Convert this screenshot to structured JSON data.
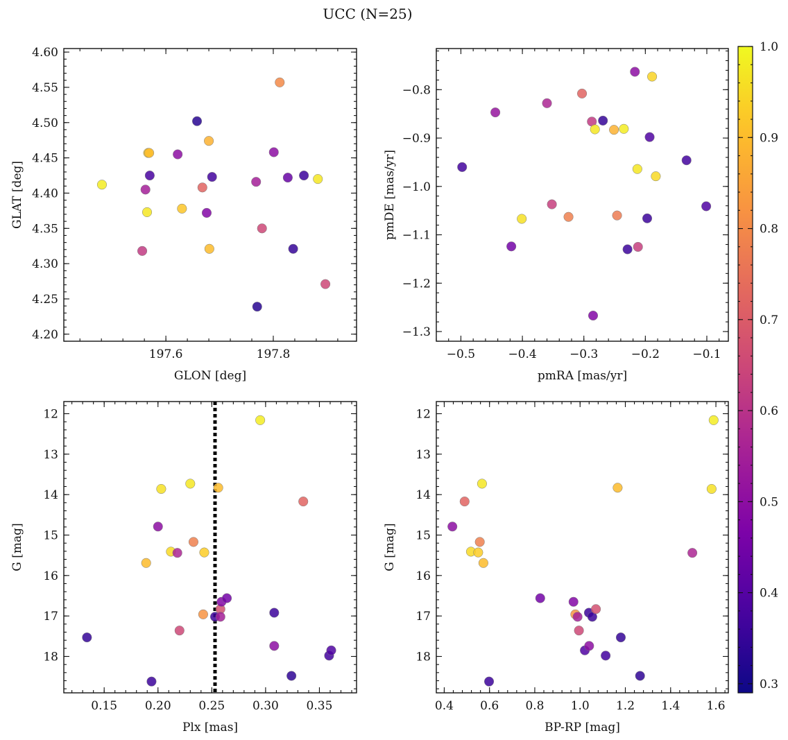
{
  "title": "UCC (N=25)",
  "colorbar": {
    "range": [
      0.29,
      1.0
    ],
    "ticks": [
      0.3,
      0.4,
      0.5,
      0.6,
      0.7,
      0.8,
      0.9,
      1.0
    ],
    "tick_labels": [
      "0.3",
      "0.4",
      "0.5",
      "0.6",
      "0.7",
      "0.8",
      "0.9",
      "1.0"
    ],
    "colormap": "plasma"
  },
  "chart_data": [
    {
      "type": "scatter",
      "xlabel": "GLON [deg]",
      "ylabel": "GLAT [deg]",
      "xlim": [
        197.41,
        197.955
      ],
      "ylim": [
        4.19,
        4.605
      ],
      "x_ticks": [
        197.6,
        197.8
      ],
      "x_tick_labels": [
        "197.6",
        "197.8"
      ],
      "y_ticks": [
        4.2,
        4.25,
        4.3,
        4.35,
        4.4,
        4.45,
        4.5,
        4.55,
        4.6
      ],
      "y_tick_labels": [
        "4.20",
        "4.25",
        "4.30",
        "4.35",
        "4.40",
        "4.45",
        "4.50",
        "4.55",
        "4.60"
      ],
      "y_inverted": false,
      "points": [
        {
          "x": 197.481,
          "y": 4.412,
          "c": 0.98
        },
        {
          "x": 197.556,
          "y": 4.318,
          "c": 0.62
        },
        {
          "x": 197.562,
          "y": 4.405,
          "c": 0.55
        },
        {
          "x": 197.565,
          "y": 4.373,
          "c": 0.97
        },
        {
          "x": 197.567,
          "y": 4.457,
          "c": 0.93
        },
        {
          "x": 197.569,
          "y": 4.457,
          "c": 0.9
        },
        {
          "x": 197.57,
          "y": 4.425,
          "c": 0.38
        },
        {
          "x": 197.622,
          "y": 4.455,
          "c": 0.5
        },
        {
          "x": 197.63,
          "y": 4.378,
          "c": 0.92
        },
        {
          "x": 197.658,
          "y": 4.502,
          "c": 0.33
        },
        {
          "x": 197.668,
          "y": 4.408,
          "c": 0.72
        },
        {
          "x": 197.676,
          "y": 4.372,
          "c": 0.48
        },
        {
          "x": 197.68,
          "y": 4.474,
          "c": 0.88
        },
        {
          "x": 197.681,
          "y": 4.321,
          "c": 0.9
        },
        {
          "x": 197.686,
          "y": 4.423,
          "c": 0.37
        },
        {
          "x": 197.768,
          "y": 4.416,
          "c": 0.55
        },
        {
          "x": 197.77,
          "y": 4.239,
          "c": 0.33
        },
        {
          "x": 197.779,
          "y": 4.35,
          "c": 0.65
        },
        {
          "x": 197.801,
          "y": 4.458,
          "c": 0.5
        },
        {
          "x": 197.812,
          "y": 4.557,
          "c": 0.8
        },
        {
          "x": 197.827,
          "y": 4.422,
          "c": 0.43
        },
        {
          "x": 197.837,
          "y": 4.321,
          "c": 0.35
        },
        {
          "x": 197.857,
          "y": 4.425,
          "c": 0.36
        },
        {
          "x": 197.883,
          "y": 4.42,
          "c": 0.97
        },
        {
          "x": 197.897,
          "y": 4.271,
          "c": 0.65
        }
      ]
    },
    {
      "type": "scatter",
      "xlabel": "pmRA [mas/yr]",
      "ylabel": "pmDE [mas/yr]",
      "xlim": [
        -0.54,
        -0.065
      ],
      "ylim": [
        -1.32,
        -0.715
      ],
      "x_ticks": [
        -0.5,
        -0.4,
        -0.3,
        -0.2,
        -0.1
      ],
      "x_tick_labels": [
        "−0.5",
        "−0.4",
        "−0.3",
        "−0.2",
        "−0.1"
      ],
      "y_ticks": [
        -1.3,
        -1.2,
        -1.1,
        -1.0,
        -0.9,
        -0.8
      ],
      "y_tick_labels": [
        "−1.3",
        "−1.2",
        "−1.1",
        "−1.0",
        "−0.9",
        "−0.8"
      ],
      "y_inverted": false,
      "points": [
        {
          "x": -0.498,
          "y": -0.96,
          "c": 0.37
        },
        {
          "x": -0.444,
          "y": -0.847,
          "c": 0.52
        },
        {
          "x": -0.418,
          "y": -1.124,
          "c": 0.45
        },
        {
          "x": -0.401,
          "y": -1.067,
          "c": 0.96
        },
        {
          "x": -0.36,
          "y": -0.828,
          "c": 0.57
        },
        {
          "x": -0.352,
          "y": -1.037,
          "c": 0.63
        },
        {
          "x": -0.325,
          "y": -1.063,
          "c": 0.78
        },
        {
          "x": -0.303,
          "y": -0.808,
          "c": 0.72
        },
        {
          "x": -0.287,
          "y": -0.866,
          "c": 0.62
        },
        {
          "x": -0.285,
          "y": -1.267,
          "c": 0.48
        },
        {
          "x": -0.282,
          "y": -0.882,
          "c": 0.97
        },
        {
          "x": -0.269,
          "y": -0.864,
          "c": 0.35
        },
        {
          "x": -0.251,
          "y": -0.883,
          "c": 0.88
        },
        {
          "x": -0.246,
          "y": -1.06,
          "c": 0.77
        },
        {
          "x": -0.235,
          "y": -0.881,
          "c": 0.98
        },
        {
          "x": -0.229,
          "y": -1.13,
          "c": 0.36
        },
        {
          "x": -0.217,
          "y": -0.763,
          "c": 0.5
        },
        {
          "x": -0.213,
          "y": -0.964,
          "c": 0.97
        },
        {
          "x": -0.212,
          "y": -1.125,
          "c": 0.63
        },
        {
          "x": -0.197,
          "y": -1.066,
          "c": 0.36
        },
        {
          "x": -0.193,
          "y": -0.898,
          "c": 0.39
        },
        {
          "x": -0.189,
          "y": -0.773,
          "c": 0.94
        },
        {
          "x": -0.183,
          "y": -0.979,
          "c": 0.95
        },
        {
          "x": -0.133,
          "y": -0.946,
          "c": 0.37
        },
        {
          "x": -0.101,
          "y": -1.041,
          "c": 0.39
        }
      ]
    },
    {
      "type": "scatter",
      "xlabel": "Plx [mas]",
      "ylabel": "G [mag]",
      "xlim": [
        0.1125,
        0.3845
      ],
      "ylim": [
        11.7,
        18.9
      ],
      "x_ticks": [
        0.15,
        0.2,
        0.25,
        0.3,
        0.35
      ],
      "x_tick_labels": [
        "0.15",
        "0.20",
        "0.25",
        "0.30",
        "0.35"
      ],
      "y_ticks": [
        12,
        13,
        14,
        15,
        16,
        17,
        18
      ],
      "y_tick_labels": [
        "12",
        "13",
        "14",
        "15",
        "16",
        "17",
        "18"
      ],
      "y_inverted": true,
      "vline": 0.253,
      "points": [
        {
          "x": 0.134,
          "y": 17.53,
          "c": 0.35
        },
        {
          "x": 0.189,
          "y": 15.69,
          "c": 0.9
        },
        {
          "x": 0.194,
          "y": 18.62,
          "c": 0.36
        },
        {
          "x": 0.2,
          "y": 14.79,
          "c": 0.5
        },
        {
          "x": 0.203,
          "y": 13.86,
          "c": 0.96
        },
        {
          "x": 0.212,
          "y": 15.41,
          "c": 0.95
        },
        {
          "x": 0.218,
          "y": 15.44,
          "c": 0.57
        },
        {
          "x": 0.22,
          "y": 17.36,
          "c": 0.65
        },
        {
          "x": 0.23,
          "y": 13.73,
          "c": 0.97
        },
        {
          "x": 0.233,
          "y": 15.17,
          "c": 0.78
        },
        {
          "x": 0.242,
          "y": 16.96,
          "c": 0.82
        },
        {
          "x": 0.243,
          "y": 15.43,
          "c": 0.93
        },
        {
          "x": 0.253,
          "y": 17.02,
          "c": 0.36
        },
        {
          "x": 0.256,
          "y": 13.83,
          "c": 0.9
        },
        {
          "x": 0.258,
          "y": 16.83,
          "c": 0.67
        },
        {
          "x": 0.258,
          "y": 17.02,
          "c": 0.55
        },
        {
          "x": 0.259,
          "y": 16.65,
          "c": 0.48
        },
        {
          "x": 0.264,
          "y": 16.56,
          "c": 0.45
        },
        {
          "x": 0.295,
          "y": 12.16,
          "c": 0.98
        },
        {
          "x": 0.308,
          "y": 16.92,
          "c": 0.36
        },
        {
          "x": 0.308,
          "y": 17.74,
          "c": 0.5
        },
        {
          "x": 0.324,
          "y": 18.48,
          "c": 0.34
        },
        {
          "x": 0.335,
          "y": 14.17,
          "c": 0.72
        },
        {
          "x": 0.359,
          "y": 17.98,
          "c": 0.37
        },
        {
          "x": 0.361,
          "y": 17.85,
          "c": 0.39
        }
      ]
    },
    {
      "type": "scatter",
      "xlabel": "BP-RP [mag]",
      "ylabel": "G [mag]",
      "xlim": [
        0.365,
        1.655
      ],
      "ylim": [
        11.7,
        18.9
      ],
      "x_ticks": [
        0.4,
        0.6,
        0.8,
        1.0,
        1.2,
        1.4,
        1.6
      ],
      "x_tick_labels": [
        "0.4",
        "0.6",
        "0.8",
        "1.0",
        "1.2",
        "1.4",
        "1.6"
      ],
      "y_ticks": [
        12,
        13,
        14,
        15,
        16,
        17,
        18
      ],
      "y_tick_labels": [
        "12",
        "13",
        "14",
        "15",
        "16",
        "17",
        "18"
      ],
      "y_inverted": true,
      "points": [
        {
          "x": 0.436,
          "y": 14.79,
          "c": 0.5
        },
        {
          "x": 0.49,
          "y": 14.17,
          "c": 0.72
        },
        {
          "x": 0.518,
          "y": 15.41,
          "c": 0.95
        },
        {
          "x": 0.55,
          "y": 15.43,
          "c": 0.93
        },
        {
          "x": 0.557,
          "y": 15.17,
          "c": 0.78
        },
        {
          "x": 0.567,
          "y": 13.73,
          "c": 0.97
        },
        {
          "x": 0.573,
          "y": 15.69,
          "c": 0.9
        },
        {
          "x": 0.598,
          "y": 18.62,
          "c": 0.36
        },
        {
          "x": 0.824,
          "y": 16.56,
          "c": 0.45
        },
        {
          "x": 0.971,
          "y": 16.65,
          "c": 0.48
        },
        {
          "x": 0.979,
          "y": 16.96,
          "c": 0.82
        },
        {
          "x": 0.989,
          "y": 17.02,
          "c": 0.55
        },
        {
          "x": 0.995,
          "y": 17.36,
          "c": 0.65
        },
        {
          "x": 1.021,
          "y": 17.85,
          "c": 0.39
        },
        {
          "x": 1.039,
          "y": 16.92,
          "c": 0.36
        },
        {
          "x": 1.04,
          "y": 17.74,
          "c": 0.5
        },
        {
          "x": 1.054,
          "y": 17.02,
          "c": 0.36
        },
        {
          "x": 1.07,
          "y": 16.83,
          "c": 0.67
        },
        {
          "x": 1.113,
          "y": 17.98,
          "c": 0.37
        },
        {
          "x": 1.166,
          "y": 13.83,
          "c": 0.9
        },
        {
          "x": 1.18,
          "y": 17.53,
          "c": 0.35
        },
        {
          "x": 1.265,
          "y": 18.48,
          "c": 0.34
        },
        {
          "x": 1.496,
          "y": 15.44,
          "c": 0.57
        },
        {
          "x": 1.581,
          "y": 13.86,
          "c": 0.96
        },
        {
          "x": 1.59,
          "y": 12.16,
          "c": 0.98
        }
      ]
    }
  ]
}
